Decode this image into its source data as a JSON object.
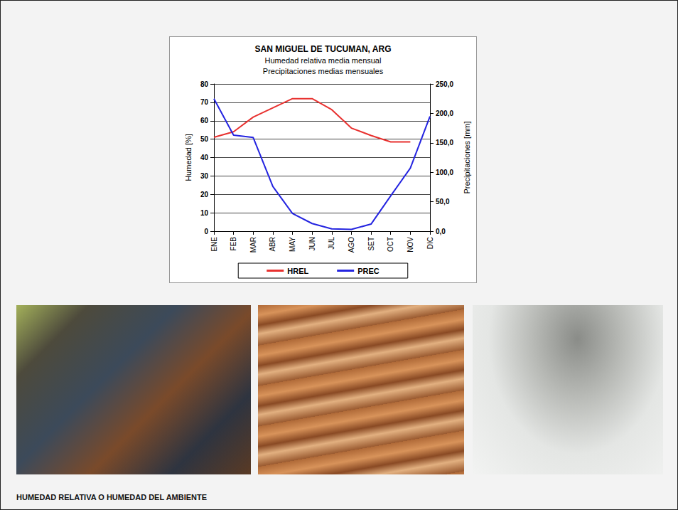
{
  "chart_data": {
    "type": "line",
    "title": "SAN MIGUEL DE TUCUMAN, ARG",
    "subtitle": [
      "Humedad relativa media mensual",
      "Precipitaciones medias mensuales"
    ],
    "categories": [
      "ENE",
      "FEB",
      "MAR",
      "ABR",
      "MAY",
      "JUN",
      "JUL",
      "AGO",
      "SET",
      "OCT",
      "NOV",
      "DIC"
    ],
    "series": [
      {
        "name": "HREL",
        "color": "#e8312f",
        "marker": "none",
        "line_style": "solid",
        "values": [
          51,
          54,
          62,
          67,
          72,
          72,
          66,
          56,
          52,
          48.5,
          48.5,
          null
        ]
      },
      {
        "name": "PREC",
        "color": "#2424e0",
        "marker": "none",
        "line_style": "solid",
        "axis": "y2",
        "values": [
          225,
          163,
          159,
          76,
          30,
          13,
          4,
          3,
          12,
          60,
          107,
          195
        ]
      }
    ],
    "y_label": "Humedad [%]",
    "y2_label": "Precipitaciones [mm]",
    "ylim": [
      0,
      80
    ],
    "yticks": [
      0,
      10,
      20,
      30,
      40,
      50,
      60,
      70,
      80
    ],
    "y2lim": [
      0,
      250
    ],
    "y2ticks": [
      {
        "value": 0,
        "label": "0,0"
      },
      {
        "value": 50,
        "label": "50,0"
      },
      {
        "value": 100,
        "label": "100,0"
      },
      {
        "value": 150,
        "label": "150,0"
      },
      {
        "value": 200,
        "label": "200,0"
      },
      {
        "value": 250,
        "label": "250,0"
      }
    ],
    "grid": true,
    "legend": "bottom"
  },
  "caption": "HUMEDAD RELATIVA O HUMEDAD DEL AMBIENTE"
}
